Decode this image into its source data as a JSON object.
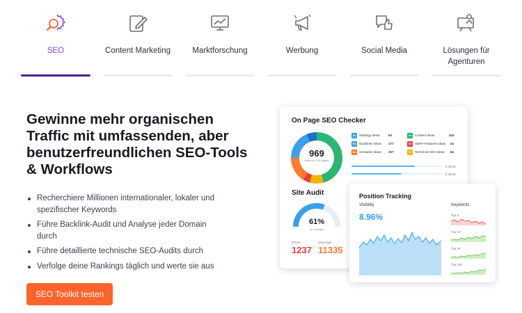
{
  "tabs": [
    {
      "label": "SEO",
      "icon": "seo-gear-search-icon",
      "active": true
    },
    {
      "label": "Content Marketing",
      "icon": "edit-document-icon",
      "active": false
    },
    {
      "label": "Marktforschung",
      "icon": "chart-presentation-icon",
      "active": false
    },
    {
      "label": "Werbung",
      "icon": "megaphone-icon",
      "active": false
    },
    {
      "label": "Social Media",
      "icon": "chat-thumbs-up-icon",
      "active": false
    },
    {
      "label": "Lösungen für Agenturen",
      "icon": "presenter-board-icon",
      "active": false
    }
  ],
  "hero": {
    "headline": "Gewinne mehr organischen Traffic mit umfassenden, aber benutzerfreundlichen SEO-Tools & Workflows",
    "bullets": [
      "Recherchiere Millionen internationaler, lokaler und spezifischer Keywords",
      "Führe Backlink-Audit und Analyse jeder Domain durch",
      "Führe detaillierte technische SEO-Audits durch",
      "Verfolge deine Rankings täglich und werte sie aus"
    ],
    "cta_label": "SEO Toolkit testen"
  },
  "on_page_card": {
    "title": "On Page SEO Checker",
    "total": "969",
    "total_caption": "ideas for 142 pages",
    "ideas": [
      {
        "abbr": "St",
        "name": "Strategy Ideas",
        "value": "64",
        "color": "#3aa0ea"
      },
      {
        "abbr": "Bl",
        "name": "Backlinks Ideas",
        "value": "177",
        "color": "#3aa0ea"
      },
      {
        "abbr": "Se",
        "name": "Semantic Ideas",
        "value": "157",
        "color": "#ff7a2f"
      },
      {
        "abbr": "Co",
        "name": "Content Ideas",
        "value": "442",
        "color": "#2bb673"
      },
      {
        "abbr": "Sf",
        "name": "SERP Features Ideas",
        "value": "44",
        "color": "#e8413c"
      },
      {
        "abbr": "Te",
        "name": "Technical SEO Ideas",
        "value": "84",
        "color": "#f5b300"
      }
    ],
    "progress_labels": [
      "8 ideas",
      "5 ideas"
    ],
    "progress_values": [
      0.7,
      0.55
    ],
    "donut_segments": [
      {
        "value": 442,
        "color": "#2bb673"
      },
      {
        "value": 84,
        "color": "#f5b300"
      },
      {
        "value": 44,
        "color": "#e8413c"
      },
      {
        "value": 157,
        "color": "#ff7a2f"
      },
      {
        "value": 177,
        "color": "#3aa0ea"
      },
      {
        "value": 64,
        "color": "#1e70c8"
      }
    ]
  },
  "site_audit": {
    "title": "Site Audit",
    "percent": "61%",
    "percent_value": 0.61,
    "caption": "no changes",
    "errors_label": "Errors",
    "errors_value": "1237",
    "warnings_label": "Warnings",
    "warnings_value": "11335"
  },
  "position_tracking": {
    "title": "Position Tracking",
    "visibility_label": "Visibility",
    "visibility_value": "8.96%",
    "keywords_label": "Keywords",
    "keyword_groups": [
      "Top 3",
      "Top 10",
      "Top 20",
      "Top 100"
    ]
  },
  "colors": {
    "accent": "#8442f0",
    "active_bar": "#4a1d96",
    "cta": "#ff642d",
    "errors": "#e8413c",
    "warnings": "#ff7a2f",
    "visibility": "#2e9df4"
  }
}
